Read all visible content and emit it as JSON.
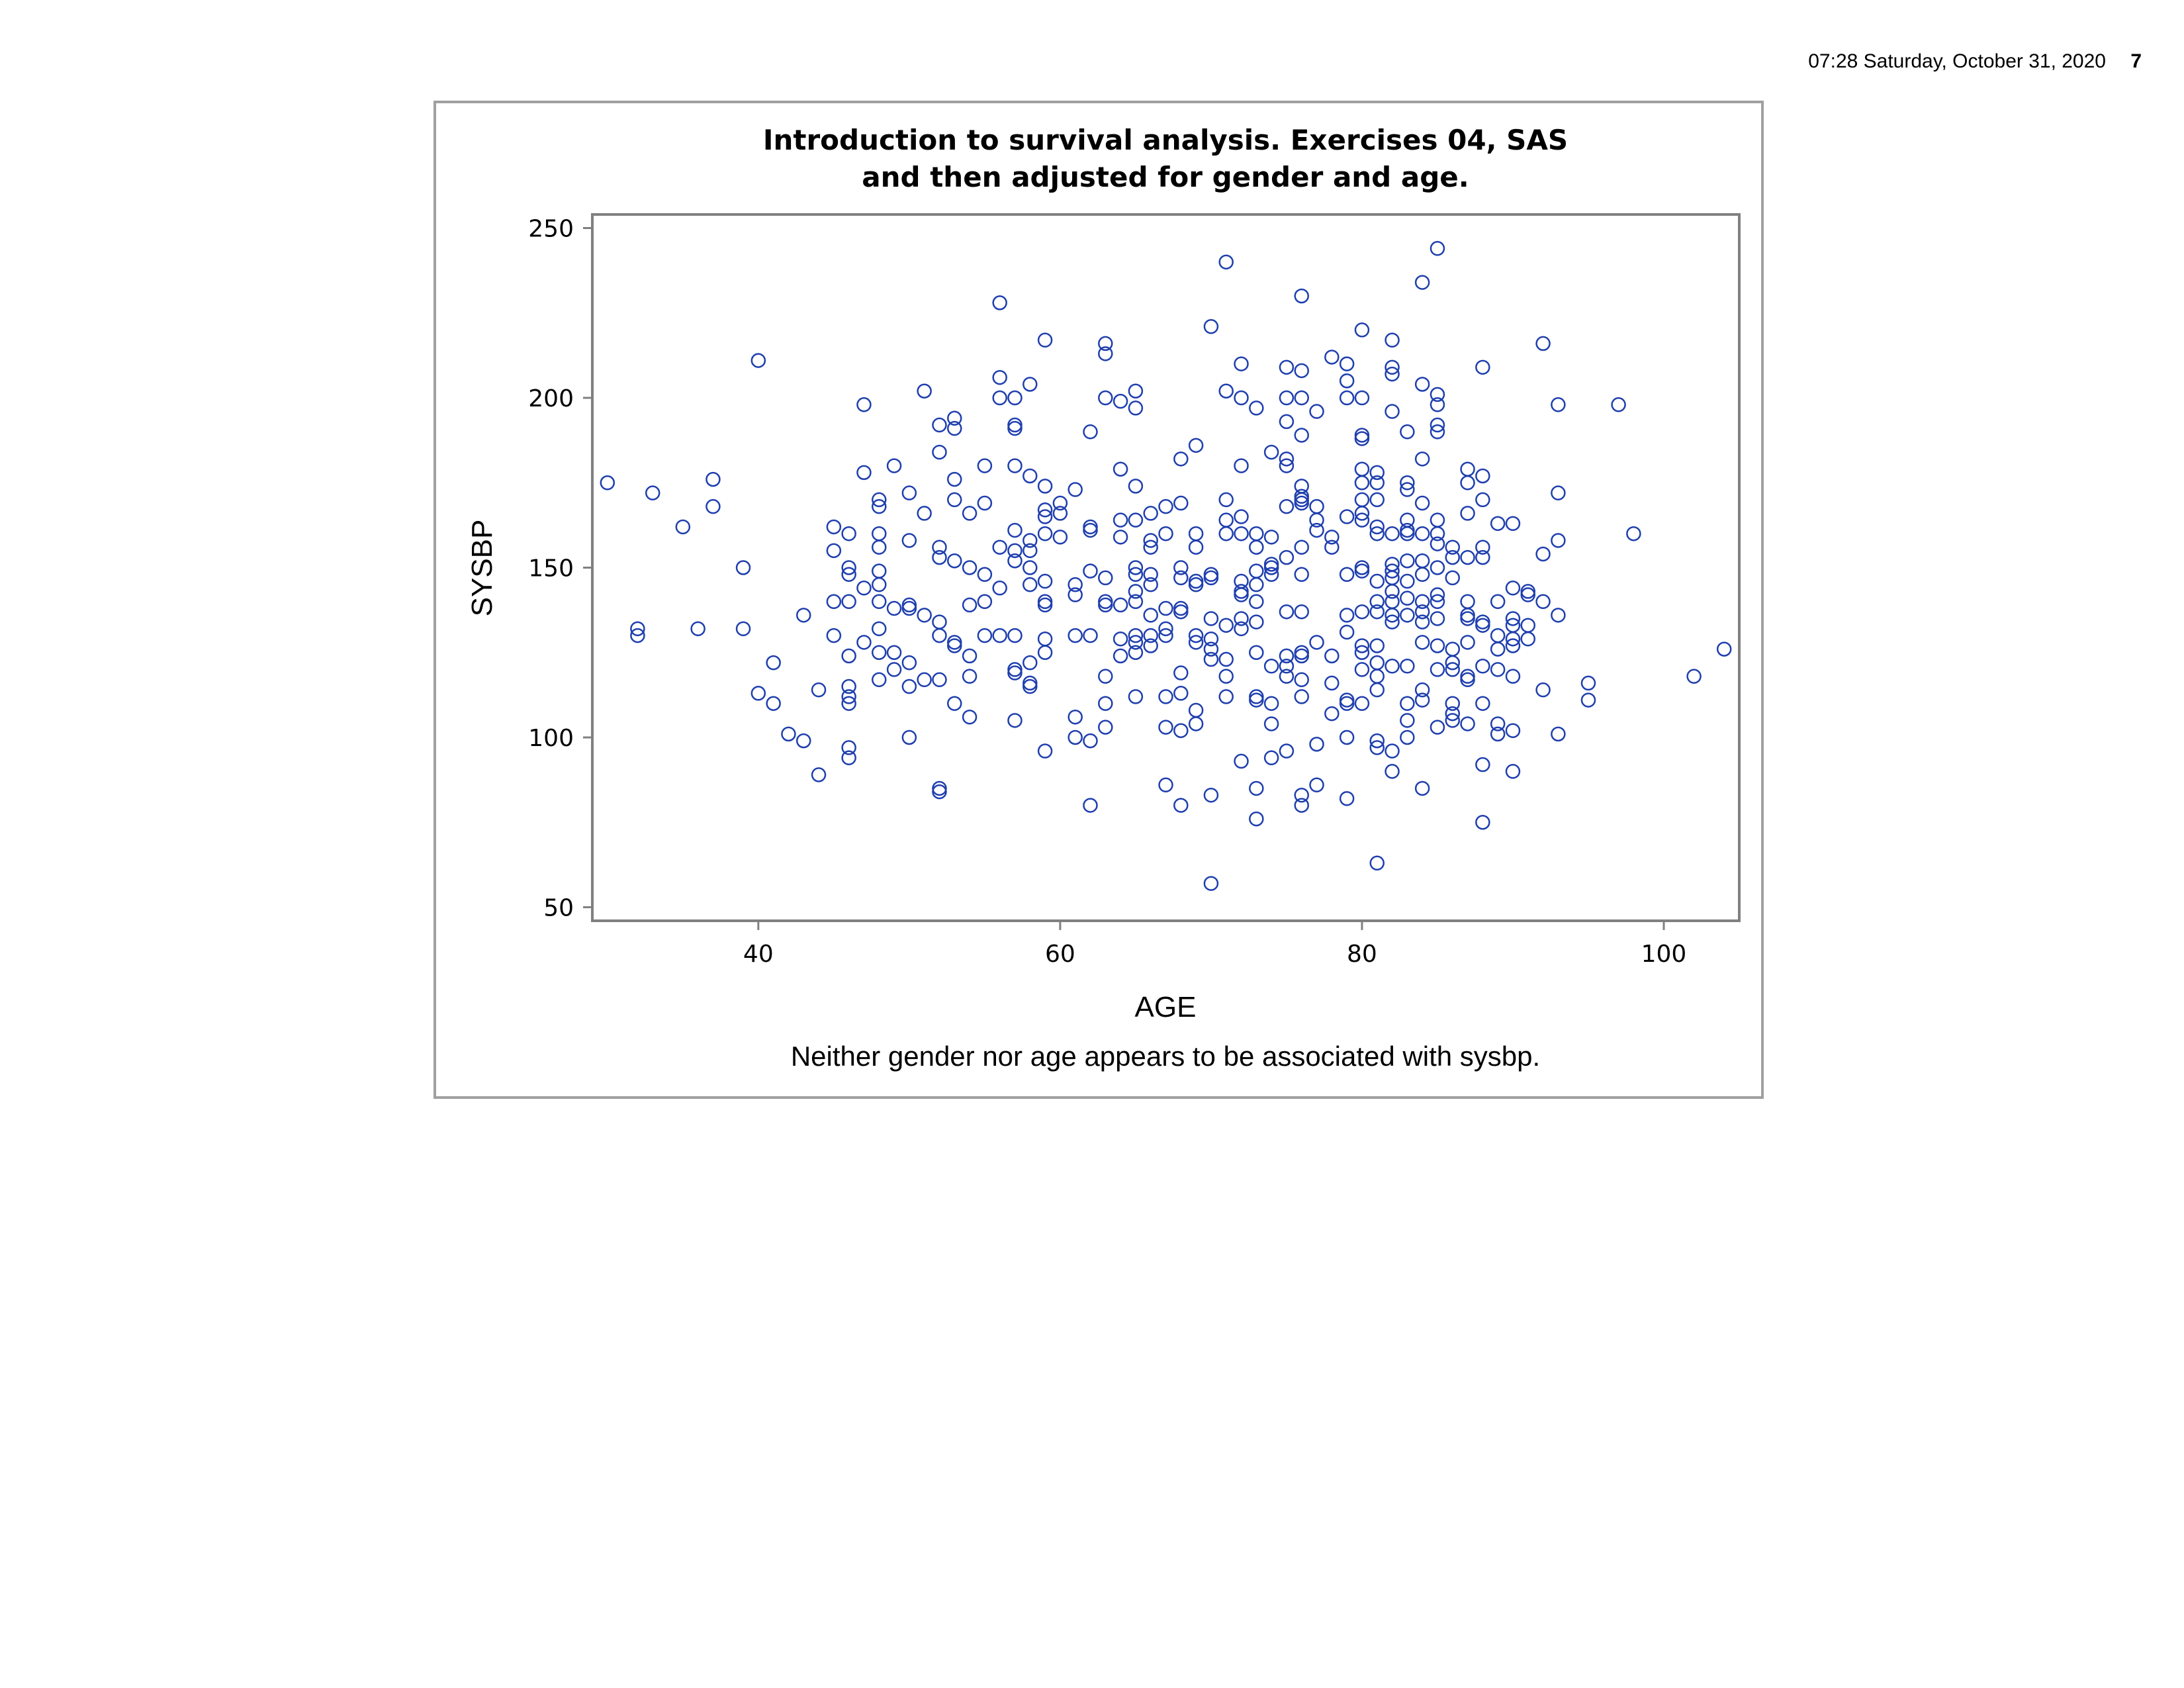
{
  "header": {
    "timestamp": "07:28 Saturday, October 31, 2020",
    "page_number": "7"
  },
  "chart_data": {
    "type": "scatter",
    "title": "Introduction to survival analysis. Exercises 04, SAS",
    "subtitle": "and then adjusted for gender and age.",
    "xlabel": "AGE",
    "ylabel": "SYSBP",
    "footnote": "Neither gender nor age appears to be associated with sysbp.",
    "xlim": [
      29,
      105
    ],
    "ylim": [
      46,
      254
    ],
    "xticks": [
      40,
      60,
      80,
      100
    ],
    "yticks": [
      50,
      100,
      150,
      200,
      250
    ],
    "grid": false,
    "marker": "open-circle",
    "marker_color": "#1f3fae",
    "axis_color": "#808080",
    "points": [
      [
        30,
        175
      ],
      [
        32,
        132
      ],
      [
        32,
        130
      ],
      [
        33,
        172
      ],
      [
        35,
        162
      ],
      [
        36,
        132
      ],
      [
        37,
        176
      ],
      [
        37,
        168
      ],
      [
        39,
        150
      ],
      [
        39,
        132
      ],
      [
        40,
        211
      ],
      [
        40,
        113
      ],
      [
        41,
        122
      ],
      [
        41,
        110
      ],
      [
        42,
        101
      ],
      [
        43,
        136
      ],
      [
        43,
        99
      ],
      [
        44,
        114
      ],
      [
        44,
        89
      ],
      [
        45,
        162
      ],
      [
        45,
        155
      ],
      [
        45,
        140
      ],
      [
        45,
        130
      ],
      [
        46,
        160
      ],
      [
        46,
        150
      ],
      [
        46,
        148
      ],
      [
        46,
        140
      ],
      [
        46,
        124
      ],
      [
        46,
        115
      ],
      [
        46,
        112
      ],
      [
        46,
        110
      ],
      [
        46,
        97
      ],
      [
        46,
        94
      ],
      [
        47,
        198
      ],
      [
        47,
        178
      ],
      [
        47,
        144
      ],
      [
        47,
        128
      ],
      [
        48,
        170
      ],
      [
        48,
        168
      ],
      [
        48,
        160
      ],
      [
        48,
        156
      ],
      [
        48,
        149
      ],
      [
        48,
        145
      ],
      [
        48,
        140
      ],
      [
        48,
        132
      ],
      [
        48,
        125
      ],
      [
        48,
        117
      ],
      [
        49,
        180
      ],
      [
        49,
        138
      ],
      [
        49,
        125
      ],
      [
        49,
        120
      ],
      [
        50,
        172
      ],
      [
        50,
        158
      ],
      [
        50,
        139
      ],
      [
        50,
        138
      ],
      [
        50,
        122
      ],
      [
        50,
        115
      ],
      [
        50,
        100
      ],
      [
        51,
        202
      ],
      [
        51,
        166
      ],
      [
        51,
        136
      ],
      [
        51,
        117
      ],
      [
        52,
        192
      ],
      [
        52,
        184
      ],
      [
        52,
        156
      ],
      [
        52,
        153
      ],
      [
        52,
        134
      ],
      [
        52,
        130
      ],
      [
        52,
        117
      ],
      [
        52,
        85
      ],
      [
        52,
        84
      ],
      [
        53,
        194
      ],
      [
        53,
        191
      ],
      [
        53,
        176
      ],
      [
        53,
        170
      ],
      [
        53,
        152
      ],
      [
        53,
        128
      ],
      [
        53,
        127
      ],
      [
        53,
        110
      ],
      [
        54,
        166
      ],
      [
        54,
        150
      ],
      [
        54,
        139
      ],
      [
        54,
        124
      ],
      [
        54,
        118
      ],
      [
        54,
        106
      ],
      [
        55,
        180
      ],
      [
        55,
        169
      ],
      [
        55,
        148
      ],
      [
        55,
        140
      ],
      [
        55,
        130
      ],
      [
        56,
        228
      ],
      [
        56,
        206
      ],
      [
        56,
        200
      ],
      [
        56,
        156
      ],
      [
        56,
        144
      ],
      [
        56,
        130
      ],
      [
        57,
        200
      ],
      [
        57,
        192
      ],
      [
        57,
        191
      ],
      [
        57,
        180
      ],
      [
        57,
        161
      ],
      [
        57,
        155
      ],
      [
        57,
        152
      ],
      [
        57,
        130
      ],
      [
        57,
        120
      ],
      [
        57,
        119
      ],
      [
        57,
        105
      ],
      [
        58,
        204
      ],
      [
        58,
        177
      ],
      [
        58,
        158
      ],
      [
        58,
        155
      ],
      [
        58,
        150
      ],
      [
        58,
        145
      ],
      [
        58,
        122
      ],
      [
        58,
        116
      ],
      [
        58,
        115
      ],
      [
        59,
        217
      ],
      [
        59,
        174
      ],
      [
        59,
        167
      ],
      [
        59,
        165
      ],
      [
        59,
        160
      ],
      [
        59,
        146
      ],
      [
        59,
        140
      ],
      [
        59,
        139
      ],
      [
        59,
        129
      ],
      [
        59,
        125
      ],
      [
        59,
        96
      ],
      [
        60,
        169
      ],
      [
        60,
        166
      ],
      [
        60,
        159
      ],
      [
        61,
        173
      ],
      [
        61,
        145
      ],
      [
        61,
        142
      ],
      [
        61,
        130
      ],
      [
        61,
        106
      ],
      [
        61,
        100
      ],
      [
        62,
        190
      ],
      [
        62,
        162
      ],
      [
        62,
        161
      ],
      [
        62,
        149
      ],
      [
        62,
        130
      ],
      [
        62,
        99
      ],
      [
        62,
        80
      ],
      [
        63,
        216
      ],
      [
        63,
        213
      ],
      [
        63,
        200
      ],
      [
        63,
        147
      ],
      [
        63,
        140
      ],
      [
        63,
        139
      ],
      [
        63,
        118
      ],
      [
        63,
        110
      ],
      [
        63,
        103
      ],
      [
        64,
        199
      ],
      [
        64,
        179
      ],
      [
        64,
        164
      ],
      [
        64,
        159
      ],
      [
        64,
        139
      ],
      [
        64,
        129
      ],
      [
        64,
        124
      ],
      [
        65,
        202
      ],
      [
        65,
        197
      ],
      [
        65,
        174
      ],
      [
        65,
        164
      ],
      [
        65,
        150
      ],
      [
        65,
        148
      ],
      [
        65,
        143
      ],
      [
        65,
        140
      ],
      [
        65,
        130
      ],
      [
        65,
        128
      ],
      [
        65,
        125
      ],
      [
        65,
        112
      ],
      [
        66,
        166
      ],
      [
        66,
        158
      ],
      [
        66,
        156
      ],
      [
        66,
        148
      ],
      [
        66,
        145
      ],
      [
        66,
        136
      ],
      [
        66,
        130
      ],
      [
        66,
        127
      ],
      [
        67,
        168
      ],
      [
        67,
        160
      ],
      [
        67,
        138
      ],
      [
        67,
        132
      ],
      [
        67,
        130
      ],
      [
        67,
        112
      ],
      [
        67,
        103
      ],
      [
        67,
        86
      ],
      [
        68,
        182
      ],
      [
        68,
        169
      ],
      [
        68,
        150
      ],
      [
        68,
        147
      ],
      [
        68,
        138
      ],
      [
        68,
        137
      ],
      [
        68,
        119
      ],
      [
        68,
        113
      ],
      [
        68,
        102
      ],
      [
        68,
        80
      ],
      [
        69,
        186
      ],
      [
        69,
        160
      ],
      [
        69,
        156
      ],
      [
        69,
        146
      ],
      [
        69,
        145
      ],
      [
        69,
        130
      ],
      [
        69,
        128
      ],
      [
        69,
        108
      ],
      [
        69,
        104
      ],
      [
        70,
        221
      ],
      [
        70,
        148
      ],
      [
        70,
        147
      ],
      [
        70,
        135
      ],
      [
        70,
        129
      ],
      [
        70,
        126
      ],
      [
        70,
        123
      ],
      [
        70,
        83
      ],
      [
        70,
        57
      ],
      [
        71,
        240
      ],
      [
        71,
        202
      ],
      [
        71,
        170
      ],
      [
        71,
        164
      ],
      [
        71,
        160
      ],
      [
        71,
        133
      ],
      [
        71,
        123
      ],
      [
        71,
        118
      ],
      [
        71,
        112
      ],
      [
        72,
        210
      ],
      [
        72,
        200
      ],
      [
        72,
        180
      ],
      [
        72,
        165
      ],
      [
        72,
        160
      ],
      [
        72,
        146
      ],
      [
        72,
        143
      ],
      [
        72,
        142
      ],
      [
        72,
        135
      ],
      [
        72,
        132
      ],
      [
        72,
        93
      ],
      [
        73,
        197
      ],
      [
        73,
        160
      ],
      [
        73,
        156
      ],
      [
        73,
        149
      ],
      [
        73,
        145
      ],
      [
        73,
        140
      ],
      [
        73,
        134
      ],
      [
        73,
        125
      ],
      [
        73,
        112
      ],
      [
        73,
        111
      ],
      [
        73,
        85
      ],
      [
        73,
        76
      ],
      [
        74,
        184
      ],
      [
        74,
        159
      ],
      [
        74,
        151
      ],
      [
        74,
        150
      ],
      [
        74,
        148
      ],
      [
        74,
        121
      ],
      [
        74,
        110
      ],
      [
        74,
        104
      ],
      [
        74,
        94
      ],
      [
        75,
        209
      ],
      [
        75,
        200
      ],
      [
        75,
        193
      ],
      [
        75,
        182
      ],
      [
        75,
        180
      ],
      [
        75,
        168
      ],
      [
        75,
        153
      ],
      [
        75,
        137
      ],
      [
        75,
        124
      ],
      [
        75,
        121
      ],
      [
        75,
        118
      ],
      [
        75,
        96
      ],
      [
        76,
        230
      ],
      [
        76,
        208
      ],
      [
        76,
        200
      ],
      [
        76,
        189
      ],
      [
        76,
        174
      ],
      [
        76,
        171
      ],
      [
        76,
        170
      ],
      [
        76,
        169
      ],
      [
        76,
        156
      ],
      [
        76,
        148
      ],
      [
        76,
        137
      ],
      [
        76,
        125
      ],
      [
        76,
        124
      ],
      [
        76,
        117
      ],
      [
        76,
        112
      ],
      [
        76,
        83
      ],
      [
        76,
        80
      ],
      [
        77,
        196
      ],
      [
        77,
        168
      ],
      [
        77,
        164
      ],
      [
        77,
        161
      ],
      [
        77,
        128
      ],
      [
        77,
        98
      ],
      [
        77,
        86
      ],
      [
        78,
        212
      ],
      [
        78,
        159
      ],
      [
        78,
        156
      ],
      [
        78,
        124
      ],
      [
        78,
        116
      ],
      [
        78,
        107
      ],
      [
        79,
        210
      ],
      [
        79,
        205
      ],
      [
        79,
        200
      ],
      [
        79,
        165
      ],
      [
        79,
        148
      ],
      [
        79,
        136
      ],
      [
        79,
        131
      ],
      [
        79,
        111
      ],
      [
        79,
        110
      ],
      [
        79,
        100
      ],
      [
        79,
        82
      ],
      [
        80,
        220
      ],
      [
        80,
        200
      ],
      [
        80,
        189
      ],
      [
        80,
        188
      ],
      [
        80,
        179
      ],
      [
        80,
        175
      ],
      [
        80,
        170
      ],
      [
        80,
        166
      ],
      [
        80,
        164
      ],
      [
        80,
        150
      ],
      [
        80,
        149
      ],
      [
        80,
        137
      ],
      [
        80,
        127
      ],
      [
        80,
        125
      ],
      [
        80,
        120
      ],
      [
        80,
        110
      ],
      [
        81,
        178
      ],
      [
        81,
        175
      ],
      [
        81,
        170
      ],
      [
        81,
        162
      ],
      [
        81,
        160
      ],
      [
        81,
        146
      ],
      [
        81,
        140
      ],
      [
        81,
        137
      ],
      [
        81,
        127
      ],
      [
        81,
        122
      ],
      [
        81,
        118
      ],
      [
        81,
        114
      ],
      [
        81,
        99
      ],
      [
        81,
        97
      ],
      [
        81,
        63
      ],
      [
        82,
        217
      ],
      [
        82,
        209
      ],
      [
        82,
        207
      ],
      [
        82,
        196
      ],
      [
        82,
        160
      ],
      [
        82,
        151
      ],
      [
        82,
        149
      ],
      [
        82,
        147
      ],
      [
        82,
        143
      ],
      [
        82,
        140
      ],
      [
        82,
        136
      ],
      [
        82,
        134
      ],
      [
        82,
        121
      ],
      [
        82,
        96
      ],
      [
        82,
        90
      ],
      [
        83,
        190
      ],
      [
        83,
        175
      ],
      [
        83,
        173
      ],
      [
        83,
        164
      ],
      [
        83,
        161
      ],
      [
        83,
        160
      ],
      [
        83,
        152
      ],
      [
        83,
        146
      ],
      [
        83,
        141
      ],
      [
        83,
        136
      ],
      [
        83,
        121
      ],
      [
        83,
        110
      ],
      [
        83,
        105
      ],
      [
        83,
        100
      ],
      [
        84,
        234
      ],
      [
        84,
        204
      ],
      [
        84,
        182
      ],
      [
        84,
        169
      ],
      [
        84,
        160
      ],
      [
        84,
        152
      ],
      [
        84,
        148
      ],
      [
        84,
        140
      ],
      [
        84,
        137
      ],
      [
        84,
        134
      ],
      [
        84,
        128
      ],
      [
        84,
        114
      ],
      [
        84,
        111
      ],
      [
        84,
        85
      ],
      [
        85,
        244
      ],
      [
        85,
        201
      ],
      [
        85,
        198
      ],
      [
        85,
        192
      ],
      [
        85,
        190
      ],
      [
        85,
        164
      ],
      [
        85,
        160
      ],
      [
        85,
        157
      ],
      [
        85,
        150
      ],
      [
        85,
        142
      ],
      [
        85,
        140
      ],
      [
        85,
        135
      ],
      [
        85,
        127
      ],
      [
        85,
        120
      ],
      [
        85,
        103
      ],
      [
        86,
        156
      ],
      [
        86,
        153
      ],
      [
        86,
        147
      ],
      [
        86,
        126
      ],
      [
        86,
        122
      ],
      [
        86,
        120
      ],
      [
        86,
        110
      ],
      [
        86,
        107
      ],
      [
        86,
        105
      ],
      [
        87,
        179
      ],
      [
        87,
        175
      ],
      [
        87,
        166
      ],
      [
        87,
        153
      ],
      [
        87,
        140
      ],
      [
        87,
        136
      ],
      [
        87,
        135
      ],
      [
        87,
        128
      ],
      [
        87,
        118
      ],
      [
        87,
        117
      ],
      [
        87,
        104
      ],
      [
        88,
        209
      ],
      [
        88,
        177
      ],
      [
        88,
        170
      ],
      [
        88,
        156
      ],
      [
        88,
        153
      ],
      [
        88,
        134
      ],
      [
        88,
        133
      ],
      [
        88,
        121
      ],
      [
        88,
        110
      ],
      [
        88,
        92
      ],
      [
        88,
        75
      ],
      [
        89,
        163
      ],
      [
        89,
        140
      ],
      [
        89,
        130
      ],
      [
        89,
        126
      ],
      [
        89,
        120
      ],
      [
        89,
        104
      ],
      [
        89,
        101
      ],
      [
        90,
        163
      ],
      [
        90,
        144
      ],
      [
        90,
        135
      ],
      [
        90,
        133
      ],
      [
        90,
        129
      ],
      [
        90,
        127
      ],
      [
        90,
        118
      ],
      [
        90,
        102
      ],
      [
        90,
        90
      ],
      [
        91,
        143
      ],
      [
        91,
        142
      ],
      [
        91,
        133
      ],
      [
        91,
        129
      ],
      [
        92,
        216
      ],
      [
        92,
        154
      ],
      [
        92,
        140
      ],
      [
        92,
        114
      ],
      [
        93,
        198
      ],
      [
        93,
        172
      ],
      [
        93,
        158
      ],
      [
        93,
        136
      ],
      [
        93,
        101
      ],
      [
        95,
        116
      ],
      [
        95,
        111
      ],
      [
        97,
        198
      ],
      [
        98,
        160
      ],
      [
        102,
        118
      ],
      [
        104,
        126
      ]
    ]
  }
}
